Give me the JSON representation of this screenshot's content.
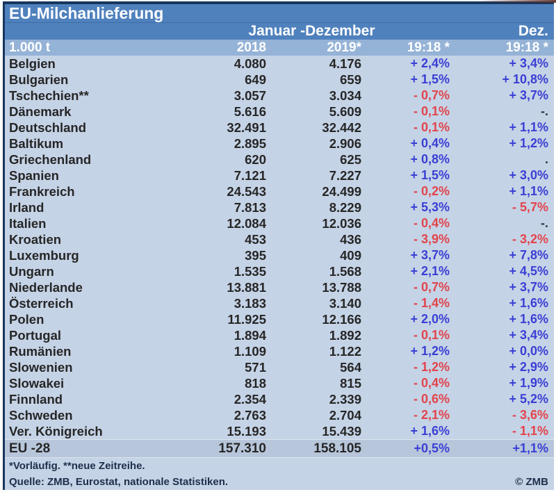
{
  "colors": {
    "navy_border": "#17365d",
    "title_bg": "#4f81bd",
    "column_header_bg": "#95b3d7",
    "body_bg": "#c5d3e6",
    "total_row_bg": "#b7c6da",
    "body_text": "#262626",
    "header_text": "#ffffff",
    "footer_text": "#1c2e4a",
    "positive": "#3a3fd4",
    "negative": "#e2444b",
    "neutral": "#2e3440"
  },
  "chart_data": {
    "type": "table",
    "title": "EU-Milchanlieferung",
    "period_header": "Januar -Dezember",
    "dec_header": "Dez.",
    "columns": [
      "1.000 t",
      "2018",
      "2019*",
      "19:18 *",
      "19:18 *"
    ],
    "rows": [
      {
        "name": "Belgien",
        "y2018": "4.080",
        "y2019": "4.176",
        "chg_year": "+ 2,4%",
        "chg_year_dir": "up",
        "chg_dec": "+ 3,4%",
        "chg_dec_dir": "up"
      },
      {
        "name": "Bulgarien",
        "y2018": "649",
        "y2019": "659",
        "chg_year": "+ 1,5%",
        "chg_year_dir": "up",
        "chg_dec": "+ 10,8%",
        "chg_dec_dir": "up"
      },
      {
        "name": "Tschechien**",
        "y2018": "3.057",
        "y2019": "3.034",
        "chg_year": "- 0,7%",
        "chg_year_dir": "down",
        "chg_dec": "+ 3,7%",
        "chg_dec_dir": "up"
      },
      {
        "name": "Dänemark",
        "y2018": "5.616",
        "y2019": "5.609",
        "chg_year": "- 0,1%",
        "chg_year_dir": "down",
        "chg_dec": "-.",
        "chg_dec_dir": "flat"
      },
      {
        "name": "Deutschland",
        "y2018": "32.491",
        "y2019": "32.442",
        "chg_year": "- 0,1%",
        "chg_year_dir": "down",
        "chg_dec": "+ 1,1%",
        "chg_dec_dir": "up"
      },
      {
        "name": "Baltikum",
        "y2018": "2.895",
        "y2019": "2.906",
        "chg_year": "+ 0,4%",
        "chg_year_dir": "up",
        "chg_dec": "+ 1,2%",
        "chg_dec_dir": "up"
      },
      {
        "name": "Griechenland",
        "y2018": "620",
        "y2019": "625",
        "chg_year": "+ 0,8%",
        "chg_year_dir": "up",
        "chg_dec": ".",
        "chg_dec_dir": "flat"
      },
      {
        "name": "Spanien",
        "y2018": "7.121",
        "y2019": "7.227",
        "chg_year": "+ 1,5%",
        "chg_year_dir": "up",
        "chg_dec": "+ 3,0%",
        "chg_dec_dir": "up"
      },
      {
        "name": "Frankreich",
        "y2018": "24.543",
        "y2019": "24.499",
        "chg_year": "- 0,2%",
        "chg_year_dir": "down",
        "chg_dec": "+ 1,1%",
        "chg_dec_dir": "up"
      },
      {
        "name": "Irland",
        "y2018": "7.813",
        "y2019": "8.229",
        "chg_year": "+ 5,3%",
        "chg_year_dir": "up",
        "chg_dec": "- 5,7%",
        "chg_dec_dir": "down"
      },
      {
        "name": "Italien",
        "y2018": "12.084",
        "y2019": "12.036",
        "chg_year": "- 0,4%",
        "chg_year_dir": "down",
        "chg_dec": "-.",
        "chg_dec_dir": "flat"
      },
      {
        "name": "Kroatien",
        "y2018": "453",
        "y2019": "436",
        "chg_year": "- 3,9%",
        "chg_year_dir": "down",
        "chg_dec": "- 3,2%",
        "chg_dec_dir": "down"
      },
      {
        "name": "Luxemburg",
        "y2018": "395",
        "y2019": "409",
        "chg_year": "+ 3,7%",
        "chg_year_dir": "up",
        "chg_dec": "+ 7,8%",
        "chg_dec_dir": "up"
      },
      {
        "name": "Ungarn",
        "y2018": "1.535",
        "y2019": "1.568",
        "chg_year": "+ 2,1%",
        "chg_year_dir": "up",
        "chg_dec": "+ 4,5%",
        "chg_dec_dir": "up"
      },
      {
        "name": "Niederlande",
        "y2018": "13.881",
        "y2019": "13.788",
        "chg_year": "- 0,7%",
        "chg_year_dir": "down",
        "chg_dec": "+ 3,7%",
        "chg_dec_dir": "up"
      },
      {
        "name": "Österreich",
        "y2018": "3.183",
        "y2019": "3.140",
        "chg_year": "- 1,4%",
        "chg_year_dir": "down",
        "chg_dec": "+ 1,6%",
        "chg_dec_dir": "up"
      },
      {
        "name": "Polen",
        "y2018": "11.925",
        "y2019": "12.166",
        "chg_year": "+ 2,0%",
        "chg_year_dir": "up",
        "chg_dec": "+ 1,6%",
        "chg_dec_dir": "up"
      },
      {
        "name": "Portugal",
        "y2018": "1.894",
        "y2019": "1.892",
        "chg_year": "- 0,1%",
        "chg_year_dir": "down",
        "chg_dec": "+ 3,4%",
        "chg_dec_dir": "up"
      },
      {
        "name": "Rumänien",
        "y2018": "1.109",
        "y2019": "1.122",
        "chg_year": "+ 1,2%",
        "chg_year_dir": "up",
        "chg_dec": "+ 0,0%",
        "chg_dec_dir": "up"
      },
      {
        "name": "Slowenien",
        "y2018": "571",
        "y2019": "564",
        "chg_year": "- 1,2%",
        "chg_year_dir": "down",
        "chg_dec": "+ 2,9%",
        "chg_dec_dir": "up"
      },
      {
        "name": "Slowakei",
        "y2018": "818",
        "y2019": "815",
        "chg_year": "- 0,4%",
        "chg_year_dir": "down",
        "chg_dec": "+ 1,9%",
        "chg_dec_dir": "up"
      },
      {
        "name": "Finnland",
        "y2018": "2.354",
        "y2019": "2.339",
        "chg_year": "- 0,6%",
        "chg_year_dir": "down",
        "chg_dec": "+ 5,2%",
        "chg_dec_dir": "up"
      },
      {
        "name": "Schweden",
        "y2018": "2.763",
        "y2019": "2.704",
        "chg_year": "- 2,1%",
        "chg_year_dir": "down",
        "chg_dec": "- 3,6%",
        "chg_dec_dir": "down"
      },
      {
        "name": "Ver. Königreich",
        "y2018": "15.193",
        "y2019": "15.439",
        "chg_year": "+ 1,6%",
        "chg_year_dir": "up",
        "chg_dec": "- 1,1%",
        "chg_dec_dir": "down"
      }
    ],
    "total": {
      "name": "EU -28",
      "y2018": "157.310",
      "y2019": "158.105",
      "chg_year": "+0,5%",
      "chg_year_dir": "up",
      "chg_dec": "+1,1%",
      "chg_dec_dir": "up"
    },
    "footnote": "*Vorläufig. **neue Zeitreihe.",
    "source": "Quelle: ZMB, Eurostat, nationale Statistiken.",
    "copyright": "© ZMB"
  }
}
